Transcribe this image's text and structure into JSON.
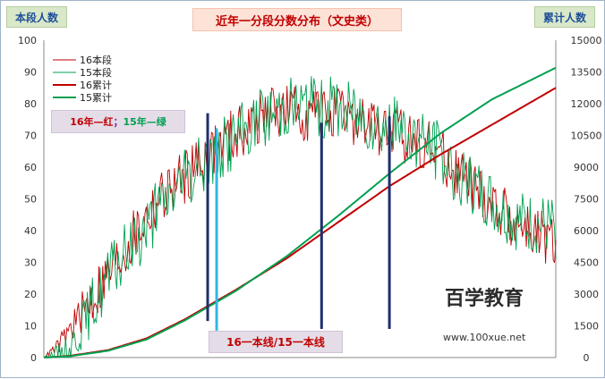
{
  "labels": {
    "left_axis": "本段人数",
    "right_axis": "累计人数",
    "title": "近年一分段分数分布（文史类）",
    "note_red": "16年—红",
    "note_sep": "；",
    "note_green": "15年—绿",
    "bottom_note": "16一本线/15一本线",
    "watermark_domain": "www.100xue.net",
    "watermark_brand": "百学教育"
  },
  "colors": {
    "red": "#c00000",
    "green": "#00a050",
    "navy": "#1f2f6e",
    "cyan": "#33b5e5"
  },
  "chart_data": {
    "type": "line",
    "left_ylim": [
      0,
      100
    ],
    "left_ticks": [
      0,
      10,
      20,
      30,
      40,
      50,
      60,
      70,
      80,
      90,
      100
    ],
    "right_ylim": [
      0,
      15000
    ],
    "right_ticks": [
      0,
      1500,
      3000,
      4500,
      6000,
      7500,
      9000,
      10500,
      12000,
      13500,
      15000
    ],
    "x_points": 400,
    "legend": [
      "16本段",
      "15本段",
      "16累计",
      "15累计"
    ],
    "series": [
      {
        "name": "16本段",
        "axis": "left",
        "style": "thin",
        "color": "#c00000",
        "seed": 16,
        "envelope": [
          [
            0,
            0
          ],
          [
            12,
            4
          ],
          [
            40,
            20
          ],
          [
            90,
            50
          ],
          [
            140,
            68
          ],
          [
            180,
            78
          ],
          [
            230,
            76
          ],
          [
            300,
            68
          ],
          [
            345,
            50
          ],
          [
            385,
            38
          ],
          [
            400,
            35
          ]
        ],
        "noise": 9
      },
      {
        "name": "15本段",
        "axis": "left",
        "style": "thin",
        "color": "#00a050",
        "seed": 15,
        "envelope": [
          [
            0,
            0
          ],
          [
            20,
            3
          ],
          [
            50,
            25
          ],
          [
            100,
            52
          ],
          [
            150,
            70
          ],
          [
            190,
            80
          ],
          [
            240,
            78
          ],
          [
            300,
            68
          ],
          [
            330,
            55
          ],
          [
            370,
            42
          ],
          [
            400,
            40
          ]
        ],
        "noise": 10
      },
      {
        "name": "16累计",
        "axis": "right",
        "style": "thick",
        "color": "#c00000",
        "points": [
          [
            0,
            0
          ],
          [
            20,
            80
          ],
          [
            50,
            350
          ],
          [
            80,
            900
          ],
          [
            110,
            1800
          ],
          [
            150,
            3200
          ],
          [
            190,
            4700
          ],
          [
            230,
            6400
          ],
          [
            270,
            8100
          ],
          [
            310,
            9600
          ],
          [
            350,
            11000
          ],
          [
            400,
            12750
          ]
        ]
      },
      {
        "name": "15累计",
        "axis": "right",
        "style": "thick",
        "color": "#00a050",
        "points": [
          [
            0,
            0
          ],
          [
            20,
            60
          ],
          [
            50,
            320
          ],
          [
            80,
            850
          ],
          [
            110,
            1750
          ],
          [
            150,
            3150
          ],
          [
            190,
            4800
          ],
          [
            230,
            6700
          ],
          [
            270,
            8700
          ],
          [
            310,
            10600
          ],
          [
            350,
            12200
          ],
          [
            400,
            13700
          ]
        ]
      }
    ],
    "markers": [
      {
        "x": 128,
        "top": 77,
        "bottom": 11.5,
        "color": "#1f2f6e"
      },
      {
        "x": 135,
        "top": 72,
        "bottom": 8.5,
        "color": "#33b5e5"
      },
      {
        "x": 217,
        "top": 74,
        "bottom": 9,
        "color": "#1f2f6e"
      },
      {
        "x": 270,
        "top": 76,
        "bottom": 9,
        "color": "#1f2f6e"
      }
    ]
  }
}
